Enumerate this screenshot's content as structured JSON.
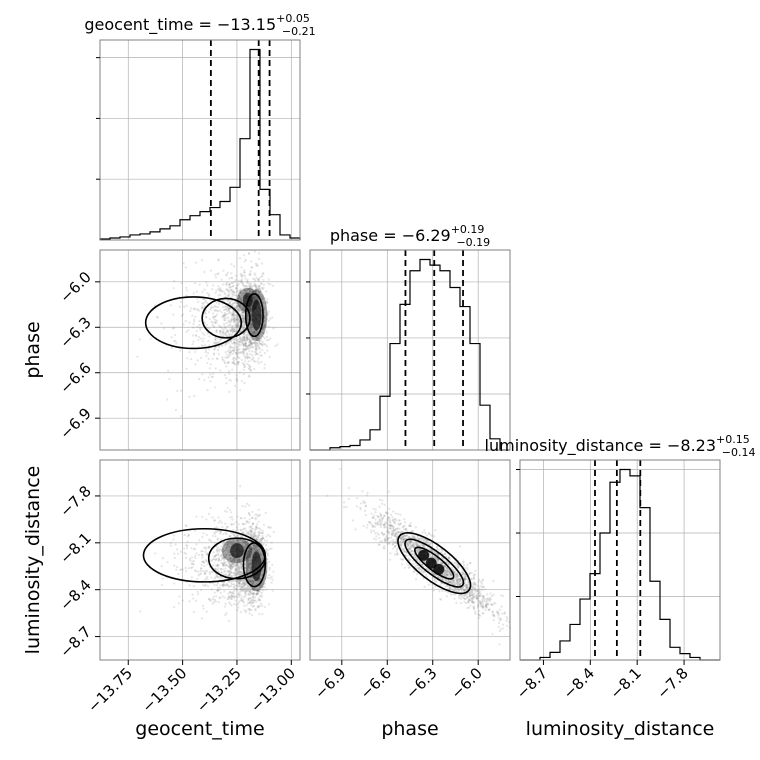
{
  "chart_data": {
    "type": "corner",
    "grid": true,
    "colors": {
      "line": "#000000",
      "grid": "#b0b0b0",
      "frame": "#808080",
      "scatter": "#888888",
      "density": "#000000"
    },
    "parameters": [
      {
        "key": "geocent_time",
        "label": "geocent_time",
        "range": [
          -13.88,
          -12.96
        ],
        "ticks": [
          -13.75,
          -13.5,
          -13.25,
          -13.0
        ],
        "tick_labels": [
          "−13.75",
          "−13.50",
          "−13.25",
          "−13.00"
        ],
        "title": {
          "name": "geocent_time",
          "median": "−13.15",
          "upper": "+0.05",
          "lower": "−0.21"
        },
        "quantiles": [
          -13.37,
          -13.15,
          -13.1
        ],
        "hist_edges": [
          -13.88,
          -13.834,
          -13.788,
          -13.742,
          -13.696,
          -13.65,
          -13.604,
          -13.558,
          -13.512,
          -13.466,
          -13.42,
          -13.374,
          -13.328,
          -13.282,
          -13.236,
          -13.19,
          -13.144,
          -13.098,
          -13.052,
          -13.006,
          -12.96
        ],
        "hist_counts": [
          1,
          2,
          3,
          5,
          6,
          8,
          11,
          14,
          20,
          24,
          28,
          32,
          38,
          52,
          100,
          188,
          50,
          25,
          5,
          2
        ],
        "hist_ticks": [
          60,
          120,
          180
        ]
      },
      {
        "key": "phase",
        "label": "phase",
        "range": [
          -7.11,
          -5.79
        ],
        "ticks": [
          -6.9,
          -6.6,
          -6.3,
          -6.0
        ],
        "tick_labels": [
          "−6.9",
          "−6.6",
          "−6.3",
          "−6.0"
        ],
        "title": {
          "name": "phase",
          "median": "−6.29",
          "upper": "+0.19",
          "lower": "−0.19"
        },
        "quantiles": [
          -6.48,
          -6.29,
          -6.1
        ],
        "hist_edges": [
          -7.11,
          -7.044,
          -6.978,
          -6.912,
          -6.846,
          -6.78,
          -6.714,
          -6.648,
          -6.582,
          -6.516,
          -6.45,
          -6.384,
          -6.318,
          -6.252,
          -6.186,
          -6.12,
          -6.054,
          -5.988,
          -5.922,
          -5.856,
          -5.79
        ],
        "hist_counts": [
          0,
          0,
          2,
          3,
          4,
          9,
          18,
          48,
          95,
          130,
          160,
          170,
          165,
          160,
          145,
          128,
          95,
          40,
          10,
          0
        ],
        "hist_ticks": [
          50,
          100,
          150
        ]
      },
      {
        "key": "luminosity_distance",
        "label": "luminosity_distance",
        "range": [
          -8.85,
          -7.57
        ],
        "ticks": [
          -8.7,
          -8.4,
          -8.1,
          -7.8
        ],
        "tick_labels": [
          "−8.7",
          "−8.4",
          "−8.1",
          "−7.8"
        ],
        "title": {
          "name": "luminosity_distance",
          "median": "−8.23",
          "upper": "+0.15",
          "lower": "−0.14"
        },
        "quantiles": [
          -8.37,
          -8.23,
          -8.08
        ],
        "hist_edges": [
          -8.85,
          -8.786,
          -8.722,
          -8.658,
          -8.594,
          -8.53,
          -8.466,
          -8.402,
          -8.338,
          -8.274,
          -8.21,
          -8.146,
          -8.082,
          -8.018,
          -7.954,
          -7.89,
          -7.826,
          -7.762,
          -7.698,
          -7.634,
          -7.57
        ],
        "hist_counts": [
          0,
          0,
          2,
          6,
          15,
          28,
          48,
          68,
          100,
          140,
          150,
          145,
          120,
          62,
          32,
          10,
          5,
          2,
          0,
          0
        ],
        "hist_ticks": [
          50,
          100,
          150
        ]
      }
    ]
  }
}
